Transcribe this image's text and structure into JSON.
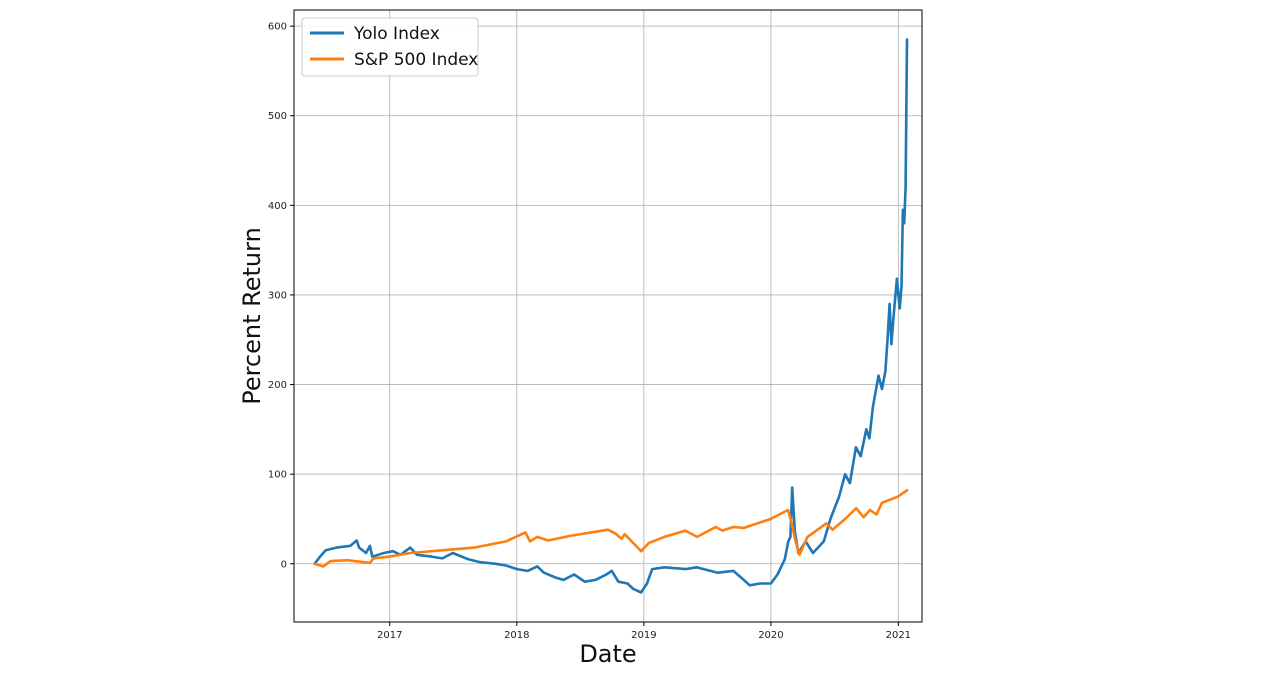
{
  "chart_data": {
    "type": "line",
    "xlabel": "Date",
    "ylabel": "Percent Return",
    "xlim": [
      "2016-04-01",
      "2021-03-10"
    ],
    "ylim": [
      -65,
      618
    ],
    "x_ticks": [
      {
        "date": "2017-01-01",
        "label": "2017"
      },
      {
        "date": "2018-01-01",
        "label": "2018"
      },
      {
        "date": "2019-01-01",
        "label": "2019"
      },
      {
        "date": "2020-01-01",
        "label": "2020"
      },
      {
        "date": "2021-01-01",
        "label": "2021"
      }
    ],
    "y_ticks": [
      0,
      100,
      200,
      300,
      400,
      500,
      600
    ],
    "grid": true,
    "legend_position": "upper-left",
    "series": [
      {
        "name": "Yolo Index",
        "color": "#1f77b4",
        "points": [
          [
            "2016-05-30",
            0
          ],
          [
            "2016-06-15",
            8
          ],
          [
            "2016-07-01",
            15
          ],
          [
            "2016-08-01",
            18
          ],
          [
            "2016-09-10",
            20
          ],
          [
            "2016-09-28",
            26
          ],
          [
            "2016-10-05",
            18
          ],
          [
            "2016-10-25",
            12
          ],
          [
            "2016-11-05",
            20
          ],
          [
            "2016-11-12",
            8
          ],
          [
            "2016-12-15",
            12
          ],
          [
            "2017-01-10",
            14
          ],
          [
            "2017-02-01",
            10
          ],
          [
            "2017-03-01",
            18
          ],
          [
            "2017-03-20",
            10
          ],
          [
            "2017-05-01",
            8
          ],
          [
            "2017-06-01",
            6
          ],
          [
            "2017-07-01",
            12
          ],
          [
            "2017-08-15",
            5
          ],
          [
            "2017-09-15",
            2
          ],
          [
            "2017-11-01",
            0
          ],
          [
            "2017-12-01",
            -2
          ],
          [
            "2018-01-01",
            -6
          ],
          [
            "2018-02-01",
            -8
          ],
          [
            "2018-03-01",
            -3
          ],
          [
            "2018-03-20",
            -10
          ],
          [
            "2018-04-20",
            -15
          ],
          [
            "2018-05-15",
            -18
          ],
          [
            "2018-06-15",
            -12
          ],
          [
            "2018-07-15",
            -20
          ],
          [
            "2018-08-15",
            -18
          ],
          [
            "2018-09-15",
            -12
          ],
          [
            "2018-10-01",
            -8
          ],
          [
            "2018-10-20",
            -20
          ],
          [
            "2018-11-15",
            -22
          ],
          [
            "2018-12-01",
            -28
          ],
          [
            "2018-12-24",
            -32
          ],
          [
            "2019-01-10",
            -22
          ],
          [
            "2019-01-25",
            -6
          ],
          [
            "2019-03-01",
            -4
          ],
          [
            "2019-05-01",
            -6
          ],
          [
            "2019-06-01",
            -4
          ],
          [
            "2019-08-01",
            -10
          ],
          [
            "2019-09-15",
            -8
          ],
          [
            "2019-10-15",
            -18
          ],
          [
            "2019-11-01",
            -24
          ],
          [
            "2019-12-01",
            -22
          ],
          [
            "2020-01-01",
            -22
          ],
          [
            "2020-01-20",
            -12
          ],
          [
            "2020-02-10",
            5
          ],
          [
            "2020-02-20",
            25
          ],
          [
            "2020-02-26",
            30
          ],
          [
            "2020-03-02",
            85
          ],
          [
            "2020-03-10",
            35
          ],
          [
            "2020-03-20",
            12
          ],
          [
            "2020-04-10",
            25
          ],
          [
            "2020-05-01",
            12
          ],
          [
            "2020-06-01",
            25
          ],
          [
            "2020-06-20",
            50
          ],
          [
            "2020-07-15",
            75
          ],
          [
            "2020-08-01",
            100
          ],
          [
            "2020-08-15",
            90
          ],
          [
            "2020-09-01",
            130
          ],
          [
            "2020-09-15",
            120
          ],
          [
            "2020-10-01",
            150
          ],
          [
            "2020-10-10",
            140
          ],
          [
            "2020-10-20",
            175
          ],
          [
            "2020-11-05",
            210
          ],
          [
            "2020-11-15",
            195
          ],
          [
            "2020-11-25",
            215
          ],
          [
            "2020-12-01",
            250
          ],
          [
            "2020-12-07",
            290
          ],
          [
            "2020-12-12",
            245
          ],
          [
            "2020-12-18",
            275
          ],
          [
            "2020-12-28",
            318
          ],
          [
            "2021-01-05",
            285
          ],
          [
            "2021-01-10",
            310
          ],
          [
            "2021-01-14",
            395
          ],
          [
            "2021-01-18",
            380
          ],
          [
            "2021-01-22",
            420
          ],
          [
            "2021-01-26",
            585
          ]
        ]
      },
      {
        "name": "S&P 500 Index",
        "color": "#ff7f0e",
        "points": [
          [
            "2016-05-30",
            0
          ],
          [
            "2016-06-24",
            -3
          ],
          [
            "2016-07-15",
            3
          ],
          [
            "2016-09-01",
            4
          ],
          [
            "2016-11-05",
            1
          ],
          [
            "2016-11-15",
            6
          ],
          [
            "2016-12-31",
            8
          ],
          [
            "2017-03-01",
            12
          ],
          [
            "2017-06-01",
            15
          ],
          [
            "2017-09-01",
            18
          ],
          [
            "2017-12-01",
            25
          ],
          [
            "2018-01-26",
            35
          ],
          [
            "2018-02-08",
            25
          ],
          [
            "2018-03-01",
            30
          ],
          [
            "2018-04-01",
            26
          ],
          [
            "2018-06-01",
            31
          ],
          [
            "2018-09-20",
            38
          ],
          [
            "2018-10-10",
            34
          ],
          [
            "2018-10-29",
            28
          ],
          [
            "2018-11-07",
            33
          ],
          [
            "2018-12-24",
            14
          ],
          [
            "2019-01-15",
            23
          ],
          [
            "2019-03-01",
            30
          ],
          [
            "2019-04-30",
            37
          ],
          [
            "2019-06-03",
            30
          ],
          [
            "2019-07-26",
            41
          ],
          [
            "2019-08-15",
            37
          ],
          [
            "2019-09-15",
            41
          ],
          [
            "2019-10-15",
            40
          ],
          [
            "2019-12-31",
            50
          ],
          [
            "2020-02-19",
            60
          ],
          [
            "2020-02-28",
            48
          ],
          [
            "2020-03-12",
            25
          ],
          [
            "2020-03-23",
            10
          ],
          [
            "2020-04-15",
            30
          ],
          [
            "2020-06-08",
            45
          ],
          [
            "2020-06-26",
            38
          ],
          [
            "2020-08-01",
            50
          ],
          [
            "2020-09-02",
            62
          ],
          [
            "2020-09-23",
            52
          ],
          [
            "2020-10-12",
            60
          ],
          [
            "2020-10-30",
            55
          ],
          [
            "2020-11-15",
            68
          ],
          [
            "2020-12-31",
            75
          ],
          [
            "2021-01-26",
            82
          ]
        ]
      }
    ]
  }
}
